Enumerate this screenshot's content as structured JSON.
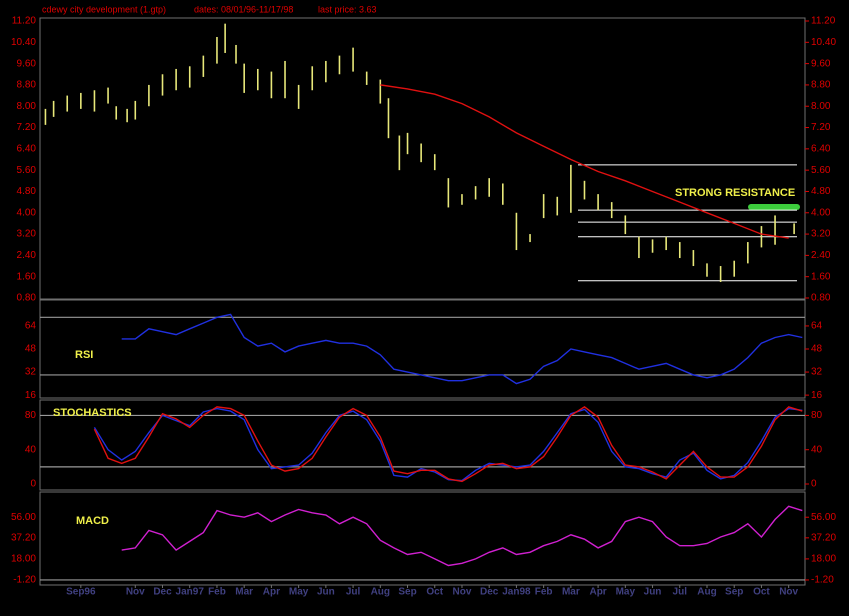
{
  "chart_data": [
    {
      "type": "ohlc",
      "title": "cdewy city development  (1.gtp)",
      "dates": "dates: 08/01/96-11/17/98",
      "last_price": "last price: 3.63",
      "annotation": "STRONG RESISTANCE",
      "color": "#e8e87a",
      "xlim": [
        -1.5,
        26.6
      ],
      "ylim": [
        0.8,
        11.2
      ],
      "yticks": [
        {
          "value": 0.8,
          "label": "0.80"
        },
        {
          "value": 1.6,
          "label": "1.60"
        },
        {
          "value": 2.4,
          "label": "2.40"
        },
        {
          "value": 3.2,
          "label": "3.20"
        },
        {
          "value": 4.0,
          "label": "4.00"
        },
        {
          "value": 4.8,
          "label": "4.80"
        },
        {
          "value": 5.6,
          "label": "5.60"
        },
        {
          "value": 6.4,
          "label": "6.40"
        },
        {
          "value": 7.2,
          "label": "7.20"
        },
        {
          "value": 8.0,
          "label": "8.00"
        },
        {
          "value": 8.8,
          "label": "8.80"
        },
        {
          "value": 9.6,
          "label": "9.60"
        },
        {
          "value": 10.4,
          "label": "10.40"
        },
        {
          "value": 11.2,
          "label": "11.20"
        }
      ],
      "x": [
        -1.3,
        -1.0,
        -0.5,
        0,
        0.5,
        1.0,
        1.3,
        1.7,
        2.0,
        2.5,
        3.0,
        3.5,
        4.0,
        4.5,
        5.0,
        5.3,
        5.7,
        6.0,
        6.5,
        7.0,
        7.5,
        8.0,
        8.5,
        9.0,
        9.5,
        10.0,
        10.5,
        11.0,
        11.3,
        11.7,
        12.0,
        12.5,
        13.0,
        13.5,
        14.0,
        14.5,
        15.0,
        15.5,
        16.0,
        16.5,
        17.0,
        17.5,
        18.0,
        18.5,
        19.0,
        19.5,
        20.0,
        20.5,
        21.0,
        21.5,
        22.0,
        22.5,
        23.0,
        23.5,
        24.0,
        24.5,
        25.0,
        25.5,
        26.2
      ],
      "low": [
        7.3,
        7.6,
        7.8,
        7.9,
        7.8,
        8.1,
        7.5,
        7.4,
        7.5,
        8.0,
        8.4,
        8.6,
        8.7,
        9.1,
        9.6,
        10.0,
        9.6,
        8.5,
        8.6,
        8.3,
        8.3,
        7.9,
        8.6,
        8.9,
        9.2,
        9.3,
        8.8,
        8.1,
        6.8,
        5.6,
        6.2,
        5.9,
        5.6,
        4.2,
        4.3,
        4.5,
        4.6,
        4.3,
        2.6,
        2.9,
        3.8,
        3.9,
        4.0,
        4.5,
        4.1,
        3.8,
        3.2,
        2.3,
        2.5,
        2.6,
        2.3,
        2.0,
        1.6,
        1.4,
        1.6,
        2.1,
        2.7,
        2.8,
        3.2
      ],
      "high": [
        7.9,
        8.2,
        8.4,
        8.5,
        8.6,
        8.7,
        8.0,
        7.9,
        8.2,
        8.8,
        9.2,
        9.4,
        9.5,
        9.9,
        10.6,
        11.1,
        10.3,
        9.6,
        9.4,
        9.3,
        9.7,
        8.8,
        9.5,
        9.7,
        9.9,
        10.2,
        9.3,
        9.0,
        8.3,
        6.9,
        7.0,
        6.6,
        6.2,
        5.3,
        4.7,
        5.0,
        5.3,
        5.1,
        4.0,
        3.2,
        4.7,
        4.6,
        5.8,
        5.2,
        4.7,
        4.4,
        3.9,
        3.1,
        3.0,
        3.1,
        2.9,
        2.6,
        2.1,
        2.0,
        2.2,
        2.9,
        3.5,
        3.9,
        3.6
      ],
      "ma": {
        "color": "#e01010",
        "x": [
          11,
          12,
          13,
          14,
          15,
          16,
          17,
          18,
          19,
          20,
          21,
          22,
          23,
          24,
          25,
          26
        ],
        "values": [
          8.8,
          8.65,
          8.45,
          8.1,
          7.6,
          7.0,
          6.5,
          6.0,
          5.55,
          5.2,
          4.8,
          4.4,
          4.0,
          3.6,
          3.2,
          3.05
        ]
      },
      "levels": [
        5.8,
        4.1,
        3.65,
        3.1,
        1.45
      ]
    },
    {
      "type": "line",
      "label": "RSI",
      "xlim": [
        -1.5,
        26.6
      ],
      "ylim": [
        14,
        82
      ],
      "yticks": [
        16,
        32,
        48,
        64
      ],
      "guides": [
        30,
        70
      ],
      "x": [
        1.5,
        2,
        2.5,
        3,
        3.5,
        4,
        4.5,
        5,
        5.5,
        6,
        6.5,
        7,
        7.5,
        8,
        8.5,
        9,
        9.5,
        10,
        10.5,
        11,
        11.5,
        12,
        12.5,
        13,
        13.5,
        14,
        14.5,
        15,
        15.5,
        16,
        16.5,
        17,
        17.5,
        18,
        18.5,
        19,
        19.5,
        20,
        20.5,
        21,
        21.5,
        22,
        22.5,
        23,
        23.5,
        24,
        24.5,
        25,
        25.5,
        26,
        26.5
      ],
      "series": [
        {
          "color": "#2030e0",
          "values": [
            55,
            55,
            62,
            60,
            58,
            62,
            66,
            70,
            72,
            56,
            50,
            52,
            46,
            50,
            52,
            54,
            52,
            52,
            50,
            44,
            34,
            32,
            30,
            28,
            26,
            26,
            28,
            30,
            30,
            24,
            27,
            36,
            40,
            48,
            46,
            44,
            42,
            38,
            34,
            36,
            38,
            34,
            30,
            28,
            30,
            34,
            42,
            52,
            56,
            58,
            56
          ]
        }
      ]
    },
    {
      "type": "line",
      "label": "STOCHASTICS",
      "xlim": [
        -1.5,
        26.6
      ],
      "ylim": [
        -7,
        98
      ],
      "yticks": [
        0,
        40,
        80
      ],
      "guides": [
        20,
        80
      ],
      "x": [
        0.5,
        1,
        1.5,
        2,
        2.5,
        3,
        3.5,
        4,
        4.5,
        5,
        5.5,
        6,
        6.5,
        7,
        7.5,
        8,
        8.5,
        9,
        9.5,
        10,
        10.5,
        11,
        11.5,
        12,
        12.5,
        13,
        13.5,
        14,
        14.5,
        15,
        15.5,
        16,
        16.5,
        17,
        17.5,
        18,
        18.5,
        19,
        19.5,
        20,
        20.5,
        21,
        21.5,
        22,
        22.5,
        23,
        23.5,
        24,
        24.5,
        25,
        25.5,
        26,
        26.5
      ],
      "series": [
        {
          "color": "#2030e0",
          "values": [
            66,
            40,
            28,
            38,
            60,
            80,
            74,
            68,
            84,
            88,
            85,
            75,
            40,
            18,
            20,
            22,
            36,
            60,
            80,
            85,
            75,
            50,
            10,
            8,
            18,
            14,
            5,
            4,
            16,
            24,
            22,
            20,
            22,
            38,
            60,
            82,
            87,
            72,
            38,
            20,
            18,
            12,
            8,
            28,
            36,
            16,
            6,
            10,
            25,
            50,
            78,
            88,
            86
          ]
        },
        {
          "color": "#e01010",
          "values": [
            64,
            30,
            24,
            30,
            55,
            82,
            76,
            66,
            80,
            90,
            88,
            80,
            50,
            22,
            15,
            18,
            30,
            55,
            78,
            88,
            80,
            55,
            15,
            12,
            16,
            16,
            6,
            3,
            12,
            22,
            24,
            18,
            20,
            32,
            55,
            80,
            90,
            78,
            45,
            22,
            20,
            14,
            6,
            22,
            38,
            20,
            8,
            8,
            20,
            44,
            75,
            90,
            85
          ]
        }
      ]
    },
    {
      "type": "line",
      "label": "MACD",
      "xlim": [
        -1.5,
        26.6
      ],
      "ylim": [
        -5.8,
        79
      ],
      "yticks": [
        {
          "value": -1.2,
          "label": "-1.20"
        },
        {
          "value": 18,
          "label": "18.00"
        },
        {
          "value": 37.2,
          "label": "37.20"
        },
        {
          "value": 56,
          "label": "56.00"
        }
      ],
      "guides": [
        -1.2
      ],
      "x": [
        1.5,
        2,
        2.5,
        3,
        3.5,
        4,
        4.5,
        5,
        5.5,
        6,
        6.5,
        7,
        7.5,
        8,
        8.5,
        9,
        9.5,
        10,
        10.5,
        11,
        11.5,
        12,
        12.5,
        13,
        13.5,
        14,
        14.5,
        15,
        15.5,
        16,
        16.5,
        17,
        17.5,
        18,
        18.5,
        19,
        19.5,
        20,
        20.5,
        21,
        21.5,
        22,
        22.5,
        23,
        23.5,
        24,
        24.5,
        25,
        25.5,
        26,
        26.5
      ],
      "series": [
        {
          "color": "#d020d0",
          "values": [
            26,
            28,
            44,
            40,
            26,
            34,
            42,
            62,
            58,
            56,
            60,
            52,
            58,
            63,
            60,
            58,
            50,
            56,
            50,
            35,
            28,
            22,
            24,
            18,
            12,
            14,
            18,
            24,
            28,
            22,
            24,
            30,
            34,
            40,
            36,
            28,
            34,
            52,
            56,
            52,
            38,
            30,
            30,
            32,
            38,
            42,
            50,
            38,
            54,
            66,
            62
          ]
        }
      ],
      "xticks": [
        {
          "value": 0,
          "label": "Sep96"
        },
        {
          "value": 2,
          "label": "Nov"
        },
        {
          "value": 3,
          "label": "Dec"
        },
        {
          "value": 4,
          "label": "Jan97"
        },
        {
          "value": 5,
          "label": "Feb"
        },
        {
          "value": 6,
          "label": "Mar"
        },
        {
          "value": 7,
          "label": "Apr"
        },
        {
          "value": 8,
          "label": "May"
        },
        {
          "value": 9,
          "label": "Jun"
        },
        {
          "value": 10,
          "label": "Jul"
        },
        {
          "value": 11,
          "label": "Aug"
        },
        {
          "value": 12,
          "label": "Sep"
        },
        {
          "value": 13,
          "label": "Oct"
        },
        {
          "value": 14,
          "label": "Nov"
        },
        {
          "value": 15,
          "label": "Dec"
        },
        {
          "value": 16,
          "label": "Jan98"
        },
        {
          "value": 17,
          "label": "Feb"
        },
        {
          "value": 18,
          "label": "Mar"
        },
        {
          "value": 19,
          "label": "Apr"
        },
        {
          "value": 20,
          "label": "May"
        },
        {
          "value": 21,
          "label": "Jun"
        },
        {
          "value": 22,
          "label": "Jul"
        },
        {
          "value": 23,
          "label": "Aug"
        },
        {
          "value": 24,
          "label": "Sep"
        },
        {
          "value": 25,
          "label": "Oct"
        },
        {
          "value": 26,
          "label": "Nov"
        }
      ]
    }
  ]
}
